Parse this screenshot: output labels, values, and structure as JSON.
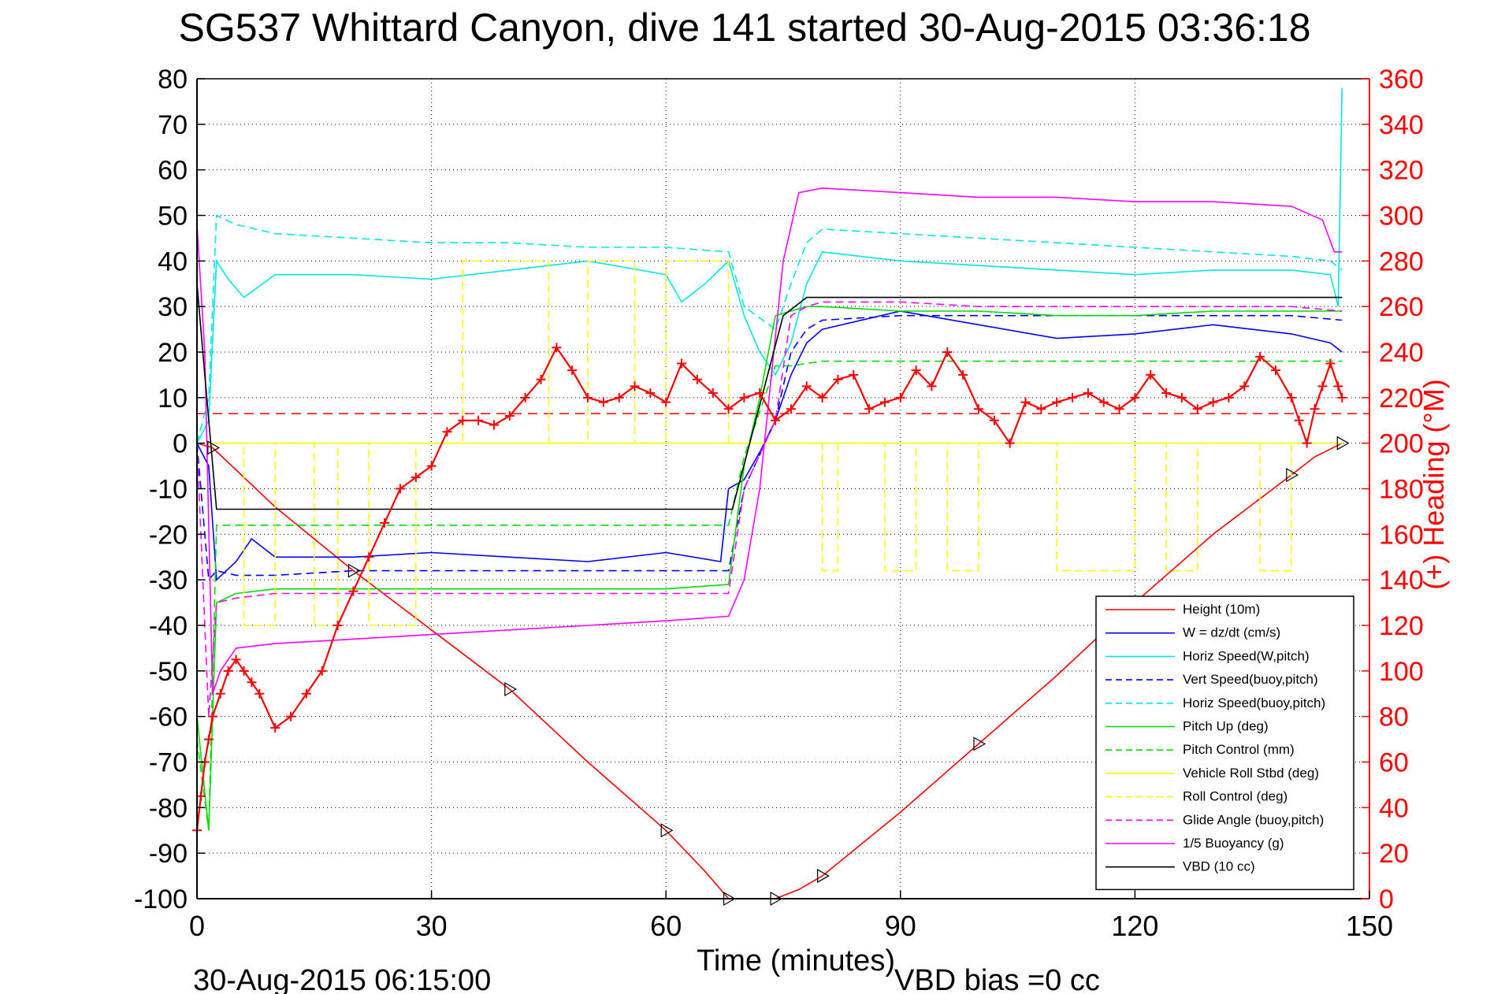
{
  "chart_data": {
    "type": "line",
    "title": "SG537 Whittard Canyon, dive 141 started 30-Aug-2015 03:36:18",
    "xlabel": "Time (minutes)",
    "ylabel_right": "(+) Heading (°M)",
    "footer_left": "30-Aug-2015 06:15:00",
    "footer_right": "VBD bias =0 cc",
    "xlim": [
      0,
      150
    ],
    "ylim_left": [
      -100,
      80
    ],
    "ylim_right": [
      0,
      360
    ],
    "xticks": [
      "0",
      "30",
      "60",
      "90",
      "120",
      "150"
    ],
    "yticks_left": [
      "80",
      "70",
      "60",
      "50",
      "40",
      "30",
      "20",
      "10",
      "0",
      "-10",
      "-20",
      "-30",
      "-40",
      "-50",
      "-60",
      "-70",
      "-80",
      "-90",
      "-100"
    ],
    "yticks_right": [
      "360",
      "340",
      "320",
      "300",
      "280",
      "260",
      "240",
      "220",
      "200",
      "180",
      "160",
      "140",
      "120",
      "100",
      "80",
      "60",
      "40",
      "20",
      "0"
    ],
    "grid": true,
    "legend_position": "lower-right",
    "heading_reference": 213,
    "series": [
      {
        "name": "Height (10m)",
        "color": "#ff0000",
        "style": "solid",
        "x": [
          0,
          2,
          10,
          20,
          30,
          40,
          50,
          60,
          65,
          68,
          70,
          74,
          77,
          80,
          90,
          100,
          110,
          120,
          130,
          140,
          143,
          146.5
        ],
        "y": [
          0,
          -1,
          -14,
          -28,
          -41,
          -54,
          -70,
          -85,
          -94,
          -100,
          -100,
          -100,
          -98,
          -95,
          -81,
          -66,
          -51,
          -35,
          -20,
          -7,
          -3,
          0
        ]
      },
      {
        "name": "W = dz/dt (cm/s)",
        "color": "#0000ff",
        "style": "solid",
        "x": [
          0,
          1.5,
          2.5,
          5,
          7,
          10,
          20,
          30,
          40,
          50,
          60,
          67,
          68,
          70,
          72,
          74,
          76,
          78,
          80,
          90,
          100,
          110,
          120,
          130,
          140,
          145,
          146.5
        ],
        "y": [
          0,
          -5,
          -30,
          -26,
          -21,
          -25,
          -25,
          -24,
          -25,
          -26,
          -24,
          -26,
          -10,
          -8,
          -2,
          5,
          15,
          22,
          25,
          29,
          26,
          23,
          24,
          26,
          24,
          22,
          20
        ]
      },
      {
        "name": "Horiz Speed(W,pitch)",
        "color": "#00e5e5",
        "style": "solid",
        "x": [
          0,
          1.5,
          2.5,
          4,
          6,
          10,
          20,
          30,
          40,
          50,
          60,
          62,
          65,
          68,
          70,
          72,
          74,
          76,
          78,
          80,
          90,
          100,
          110,
          120,
          130,
          140,
          145,
          146,
          146.5
        ],
        "y": [
          0,
          5,
          40,
          36,
          32,
          37,
          37,
          36,
          38,
          40,
          37,
          31,
          35,
          40,
          28,
          20,
          15,
          22,
          35,
          42,
          40,
          39,
          38,
          37,
          38,
          38,
          37,
          30,
          78
        ]
      },
      {
        "name": "Vert Speed(buoy,pitch)",
        "color": "#0000ff",
        "style": "dashed",
        "x": [
          0,
          1.5,
          2.5,
          5,
          10,
          20,
          30,
          40,
          50,
          60,
          68,
          70,
          74,
          76,
          78,
          80,
          90,
          100,
          110,
          120,
          130,
          140,
          146.5
        ],
        "y": [
          0,
          -30,
          -28,
          -29,
          -29,
          -28,
          -28,
          -28,
          -28,
          -28,
          -28,
          -10,
          5,
          20,
          25,
          27,
          28,
          28,
          28,
          28,
          28,
          28,
          27
        ]
      },
      {
        "name": "Horiz Speed(buoy,pitch)",
        "color": "#00e5e5",
        "style": "dashed",
        "x": [
          0,
          1.5,
          2.5,
          5,
          10,
          20,
          30,
          40,
          50,
          60,
          68,
          70,
          74,
          76,
          78,
          80,
          90,
          100,
          110,
          120,
          130,
          140,
          145,
          146.5
        ],
        "y": [
          0,
          10,
          50,
          48,
          46,
          45,
          44,
          44,
          43,
          43,
          42,
          30,
          25,
          35,
          44,
          47,
          46,
          45,
          44,
          43,
          42,
          41,
          40,
          38
        ]
      },
      {
        "name": "Pitch Up (deg)",
        "color": "#00dd00",
        "style": "solid",
        "x": [
          0,
          1.5,
          2.5,
          5,
          10,
          20,
          30,
          40,
          50,
          60,
          68,
          70,
          72,
          74,
          76,
          78,
          80,
          90,
          100,
          110,
          120,
          130,
          140,
          146.5
        ],
        "y": [
          -60,
          -85,
          -35,
          -33,
          -32,
          -32,
          -32,
          -32,
          -32,
          -32,
          -31,
          -5,
          10,
          28,
          29,
          30,
          30,
          29,
          29,
          28,
          28,
          29,
          29,
          29
        ]
      },
      {
        "name": "Pitch Control (mm)",
        "color": "#00dd00",
        "style": "dashed",
        "x": [
          0,
          1.5,
          2.5,
          10,
          30,
          60,
          68,
          70,
          74,
          76,
          80,
          100,
          146.5
        ],
        "y": [
          -65,
          -85,
          -18,
          -18,
          -18,
          -18,
          -18,
          -3,
          17,
          17,
          18,
          18,
          18
        ]
      },
      {
        "name": "Vehicle Roll Stbd (deg)",
        "color": "#ffff00",
        "style": "solid",
        "x": [
          0,
          10,
          20,
          30,
          40,
          50,
          60,
          70,
          80,
          90,
          100,
          110,
          120,
          130,
          140,
          146.5
        ],
        "y": [
          0,
          0,
          0,
          0,
          0,
          0,
          0,
          0,
          0,
          0,
          0,
          0,
          0,
          0,
          0,
          0
        ]
      },
      {
        "name": "Roll Control (deg)",
        "color": "#ffff00",
        "style": "dashed",
        "x": [
          0,
          6,
          6,
          10,
          10,
          15,
          15,
          18,
          18,
          22,
          22,
          28,
          28,
          34,
          34,
          45,
          45,
          50,
          50,
          56,
          56,
          60,
          60,
          68,
          68,
          80,
          80,
          82,
          82,
          88,
          88,
          92,
          92,
          96,
          96,
          100,
          100,
          110,
          110,
          120,
          120,
          124,
          124,
          128,
          128,
          136,
          136,
          140,
          140,
          146.5
        ],
        "y": [
          0,
          0,
          -40,
          -40,
          0,
          0,
          -40,
          -40,
          0,
          0,
          -40,
          -40,
          0,
          0,
          40,
          40,
          0,
          0,
          40,
          40,
          0,
          0,
          40,
          40,
          0,
          0,
          -28,
          -28,
          0,
          0,
          -28,
          -28,
          0,
          0,
          -28,
          -28,
          0,
          0,
          -28,
          -28,
          0,
          0,
          -28,
          -28,
          0,
          0,
          -28,
          -28,
          0,
          0
        ]
      },
      {
        "name": "Glide Angle (buoy,pitch)",
        "color": "#ff00ff",
        "style": "dashed",
        "x": [
          0,
          1.5,
          2.5,
          5,
          10,
          20,
          30,
          40,
          50,
          60,
          68,
          70,
          74,
          76,
          78,
          80,
          90,
          100,
          110,
          120,
          130,
          140,
          146.5
        ],
        "y": [
          0,
          -60,
          -35,
          -34,
          -33,
          -33,
          -33,
          -33,
          -33,
          -33,
          -33,
          -10,
          5,
          28,
          30,
          31,
          31,
          30,
          30,
          30,
          30,
          30,
          29
        ]
      },
      {
        "name": "1/5 Buoyancy (g)",
        "color": "#ff00ff",
        "style": "solid",
        "x": [
          0,
          1,
          2,
          3,
          5,
          10,
          20,
          30,
          40,
          50,
          60,
          68,
          70,
          72,
          75,
          77,
          80,
          90,
          100,
          110,
          120,
          130,
          140,
          144,
          145.5,
          146.5
        ],
        "y": [
          48,
          20,
          -55,
          -50,
          -45,
          -44,
          -43,
          -42,
          -41,
          -40,
          -39,
          -38,
          -30,
          -10,
          40,
          55,
          56,
          55,
          54,
          54,
          53,
          53,
          52,
          49,
          42,
          42
        ]
      },
      {
        "name": "VBD (10 cc)",
        "color": "#000000",
        "style": "solid",
        "x": [
          0,
          1,
          2.5,
          10,
          30,
          60,
          68,
          68.5,
          75,
          78,
          80,
          100,
          146.5
        ],
        "y": [
          35,
          15,
          -14.5,
          -14.5,
          -14.5,
          -14.5,
          -14.5,
          -14.5,
          28,
          32,
          32,
          32,
          32
        ]
      }
    ],
    "heading_series": {
      "name": "(+) Heading (°M)",
      "color": "#ff0000",
      "marker": "+",
      "x": [
        0,
        0.5,
        1,
        1.5,
        2,
        3,
        4,
        5,
        6,
        7,
        8,
        10,
        12,
        14,
        16,
        18,
        20,
        22,
        24,
        26,
        28,
        30,
        32,
        34,
        36,
        38,
        40,
        42,
        44,
        46,
        48,
        50,
        52,
        54,
        56,
        58,
        60,
        62,
        64,
        66,
        68,
        70,
        72,
        74,
        76,
        78,
        80,
        82,
        84,
        86,
        88,
        90,
        92,
        94,
        96,
        98,
        100,
        102,
        104,
        106,
        108,
        110,
        112,
        114,
        116,
        118,
        120,
        122,
        124,
        126,
        128,
        130,
        132,
        134,
        136,
        138,
        140,
        141,
        142,
        143,
        144,
        145,
        146,
        146.5
      ],
      "y": [
        30,
        45,
        60,
        70,
        80,
        90,
        100,
        105,
        100,
        95,
        90,
        75,
        80,
        90,
        100,
        120,
        135,
        150,
        165,
        180,
        185,
        190,
        205,
        210,
        210,
        208,
        212,
        220,
        228,
        242,
        232,
        220,
        218,
        220,
        225,
        222,
        218,
        235,
        228,
        222,
        215,
        220,
        222,
        210,
        215,
        225,
        220,
        228,
        230,
        215,
        218,
        220,
        232,
        225,
        240,
        230,
        215,
        210,
        200,
        218,
        215,
        218,
        220,
        222,
        218,
        215,
        220,
        230,
        222,
        220,
        215,
        218,
        220,
        225,
        238,
        232,
        220,
        210,
        200,
        215,
        225,
        235,
        225,
        220
      ]
    },
    "legend": [
      {
        "label": "Height (10m)",
        "color": "#ff0000",
        "style": "solid"
      },
      {
        "label": "W = dz/dt (cm/s)",
        "color": "#0000ff",
        "style": "solid"
      },
      {
        "label": "Horiz Speed(W,pitch)",
        "color": "#00e5e5",
        "style": "solid"
      },
      {
        "label": "Vert Speed(buoy,pitch)",
        "color": "#0000ff",
        "style": "dashed"
      },
      {
        "label": "Horiz Speed(buoy,pitch)",
        "color": "#00e5e5",
        "style": "dashed"
      },
      {
        "label": "Pitch Up (deg)",
        "color": "#00dd00",
        "style": "solid"
      },
      {
        "label": "Pitch Control (mm)",
        "color": "#00dd00",
        "style": "dashed"
      },
      {
        "label": "Vehicle Roll Stbd (deg)",
        "color": "#ffff00",
        "style": "solid"
      },
      {
        "label": "Roll Control (deg)",
        "color": "#ffff00",
        "style": "dashed"
      },
      {
        "label": "Glide Angle (buoy,pitch)",
        "color": "#ff00ff",
        "style": "dashed"
      },
      {
        "label": "1/5 Buoyancy (g)",
        "color": "#ff00ff",
        "style": "solid"
      },
      {
        "label": "VBD (10 cc)",
        "color": "#000000",
        "style": "solid"
      }
    ]
  }
}
